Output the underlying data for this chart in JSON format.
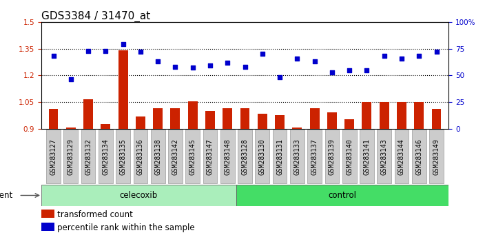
{
  "title": "GDS3384 / 31470_at",
  "samples": [
    "GSM283127",
    "GSM283129",
    "GSM283132",
    "GSM283134",
    "GSM283135",
    "GSM283136",
    "GSM283138",
    "GSM283142",
    "GSM283145",
    "GSM283147",
    "GSM283148",
    "GSM283128",
    "GSM283130",
    "GSM283131",
    "GSM283133",
    "GSM283137",
    "GSM283139",
    "GSM283140",
    "GSM283141",
    "GSM283143",
    "GSM283144",
    "GSM283146",
    "GSM283149"
  ],
  "bar_values": [
    1.01,
    0.905,
    1.065,
    0.925,
    1.34,
    0.97,
    1.015,
    1.015,
    1.055,
    1.0,
    1.015,
    1.015,
    0.985,
    0.975,
    0.905,
    1.015,
    0.99,
    0.955,
    1.05,
    1.05,
    1.05,
    1.05,
    1.01
  ],
  "scatter_values": [
    68,
    46,
    73,
    73,
    79,
    72,
    63,
    58,
    57,
    59,
    62,
    58,
    70,
    48,
    66,
    63,
    53,
    55,
    55,
    68,
    66,
    68,
    72
  ],
  "celecoxib_count": 11,
  "control_count": 12,
  "ylim_left": [
    0.9,
    1.5
  ],
  "ylim_right": [
    0,
    100
  ],
  "yticks_left": [
    0.9,
    1.05,
    1.2,
    1.35,
    1.5
  ],
  "yticks_right": [
    0,
    25,
    50,
    75,
    100
  ],
  "ytick_labels_left": [
    "0.9",
    "1.05",
    "1.2",
    "1.35",
    "1.5"
  ],
  "ytick_labels_right": [
    "0",
    "25",
    "50",
    "75",
    "100%"
  ],
  "bar_color": "#cc2200",
  "scatter_color": "#0000cc",
  "celecoxib_color": "#aaeebb",
  "control_color": "#44dd66",
  "agent_label": "agent",
  "celecoxib_label": "celecoxib",
  "control_label": "control",
  "legend_bar_label": "transformed count",
  "legend_scatter_label": "percentile rank within the sample",
  "title_fontsize": 11,
  "tick_fontsize": 7.5,
  "label_fontsize": 8.5,
  "xtick_bg": "#cccccc",
  "xtick_fontsize": 7
}
